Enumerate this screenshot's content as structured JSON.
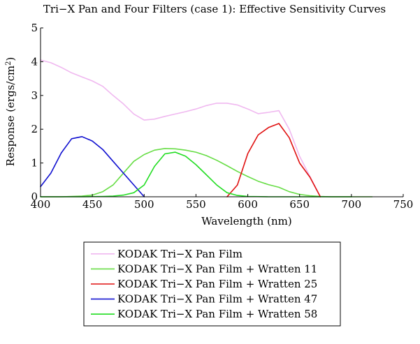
{
  "chart_data": {
    "type": "line",
    "title": "Tri−X Pan and Four Filters (case 1): Effective Sensitivity Curves",
    "xlabel": "Wavelength (nm)",
    "ylabel_main": "Response (ergs/cm",
    "ylabel_sup": "2",
    "ylabel_close": ")",
    "xlim": [
      400,
      750
    ],
    "ylim": [
      0,
      5
    ],
    "xticks": [
      400,
      450,
      500,
      550,
      600,
      650,
      700,
      750
    ],
    "yticks": [
      0,
      1,
      2,
      3,
      4,
      5
    ],
    "grid": false,
    "legend_position": "bottom",
    "series": [
      {
        "name": "KODAK Tri−X Pan Film",
        "color": "#f0b8f0",
        "x": [
          400,
          410,
          420,
          430,
          440,
          450,
          460,
          470,
          480,
          490,
          500,
          510,
          520,
          530,
          540,
          550,
          560,
          570,
          580,
          590,
          600,
          610,
          620,
          630,
          640,
          650,
          660,
          670
        ],
        "y": [
          4.05,
          3.97,
          3.83,
          3.67,
          3.55,
          3.43,
          3.27,
          3.0,
          2.75,
          2.45,
          2.27,
          2.3,
          2.38,
          2.45,
          2.52,
          2.6,
          2.7,
          2.77,
          2.77,
          2.72,
          2.6,
          2.46,
          2.5,
          2.55,
          2.0,
          1.2,
          0.6,
          0.0
        ]
      },
      {
        "name": "KODAK Tri−X Pan Film + Wratten 11",
        "color": "#66dd44",
        "x": [
          400,
          420,
          440,
          450,
          460,
          470,
          480,
          490,
          500,
          510,
          520,
          530,
          540,
          550,
          560,
          570,
          580,
          590,
          600,
          610,
          620,
          630,
          640,
          650,
          660,
          670,
          680,
          700,
          720
        ],
        "y": [
          0.0,
          0.0,
          0.02,
          0.05,
          0.15,
          0.35,
          0.7,
          1.05,
          1.25,
          1.38,
          1.43,
          1.42,
          1.38,
          1.32,
          1.22,
          1.08,
          0.92,
          0.75,
          0.6,
          0.46,
          0.36,
          0.28,
          0.15,
          0.07,
          0.03,
          0.01,
          0.0,
          0.0,
          0.0
        ]
      },
      {
        "name": "KODAK Tri−X Pan Film + Wratten 25",
        "color": "#e01010",
        "x": [
          580,
          590,
          600,
          610,
          620,
          630,
          640,
          650,
          660,
          670
        ],
        "y": [
          0.0,
          0.35,
          1.28,
          1.83,
          2.05,
          2.17,
          1.75,
          1.0,
          0.58,
          0.0
        ]
      },
      {
        "name": "KODAK Tri−X Pan Film + Wratten 47",
        "color": "#1010d0",
        "x": [
          400,
          410,
          420,
          430,
          440,
          450,
          460,
          470,
          480,
          490,
          500
        ],
        "y": [
          0.3,
          0.7,
          1.3,
          1.72,
          1.78,
          1.65,
          1.4,
          1.05,
          0.7,
          0.35,
          0.0
        ]
      },
      {
        "name": "KODAK Tri−X Pan Film + Wratten 58",
        "color": "#22dd22",
        "x": [
          400,
          440,
          460,
          470,
          480,
          490,
          500,
          510,
          520,
          530,
          540,
          550,
          560,
          570,
          580,
          590,
          600,
          620,
          650,
          700
        ],
        "y": [
          0.0,
          0.0,
          0.01,
          0.02,
          0.05,
          0.12,
          0.35,
          0.9,
          1.27,
          1.32,
          1.2,
          0.95,
          0.65,
          0.35,
          0.12,
          0.04,
          0.01,
          0.0,
          0.0,
          0.0
        ]
      }
    ]
  }
}
